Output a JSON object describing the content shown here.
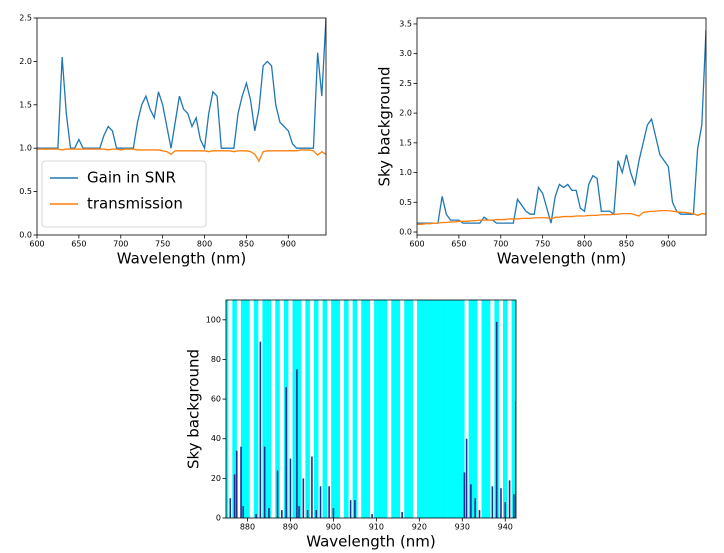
{
  "chart_data": [
    {
      "type": "line",
      "xlabel": "Wavelength (nm)",
      "x": [
        600,
        605,
        610,
        615,
        620,
        625,
        630,
        635,
        640,
        645,
        650,
        655,
        660,
        665,
        670,
        675,
        680,
        685,
        690,
        695,
        700,
        705,
        710,
        715,
        720,
        725,
        730,
        735,
        740,
        745,
        750,
        755,
        760,
        765,
        770,
        775,
        780,
        785,
        790,
        795,
        800,
        805,
        810,
        815,
        820,
        825,
        830,
        835,
        840,
        845,
        850,
        855,
        860,
        865,
        870,
        875,
        880,
        885,
        890,
        895,
        900,
        905,
        910,
        915,
        920,
        925,
        930,
        935,
        940,
        945
      ],
      "series": [
        {
          "name": "Gain in SNR",
          "color": "#1f77b4",
          "values": [
            1.0,
            1.0,
            1.0,
            1.0,
            1.0,
            1.0,
            2.05,
            1.4,
            1.0,
            1.0,
            1.1,
            1.0,
            1.0,
            1.0,
            1.0,
            1.0,
            1.15,
            1.25,
            1.2,
            1.0,
            1.0,
            1.0,
            1.0,
            1.0,
            1.3,
            1.5,
            1.6,
            1.45,
            1.35,
            1.65,
            1.5,
            1.25,
            1.0,
            1.3,
            1.6,
            1.45,
            1.4,
            1.25,
            1.35,
            1.1,
            1.0,
            1.4,
            1.65,
            1.6,
            1.0,
            1.0,
            1.0,
            1.0,
            1.4,
            1.6,
            1.75,
            1.55,
            1.2,
            1.45,
            1.95,
            2.0,
            1.95,
            1.5,
            1.3,
            1.25,
            1.2,
            1.05,
            1.0,
            1.0,
            1.0,
            1.0,
            1.0,
            2.1,
            1.6,
            2.5
          ]
        },
        {
          "name": "transmission",
          "color": "#ff7f0e",
          "values": [
            0.99,
            0.99,
            0.99,
            0.99,
            0.99,
            0.99,
            0.98,
            0.99,
            0.99,
            0.99,
            0.99,
            0.99,
            0.99,
            0.99,
            0.99,
            0.99,
            0.99,
            0.98,
            0.99,
            0.99,
            0.98,
            0.99,
            0.99,
            0.99,
            0.98,
            0.98,
            0.98,
            0.98,
            0.98,
            0.98,
            0.97,
            0.96,
            0.93,
            0.97,
            0.97,
            0.97,
            0.97,
            0.97,
            0.97,
            0.97,
            0.97,
            0.96,
            0.97,
            0.97,
            0.97,
            0.97,
            0.97,
            0.96,
            0.97,
            0.97,
            0.97,
            0.96,
            0.93,
            0.85,
            0.96,
            0.97,
            0.97,
            0.97,
            0.97,
            0.97,
            0.97,
            0.97,
            0.97,
            0.98,
            0.98,
            0.98,
            0.97,
            0.92,
            0.96,
            0.93
          ]
        }
      ],
      "xlim": [
        600,
        945
      ],
      "xticks": [
        600,
        650,
        700,
        750,
        800,
        850,
        900
      ],
      "ylim": [
        0,
        2.5
      ],
      "yticks": [
        {
          "value": 0,
          "label": "0.0"
        },
        {
          "value": 0.5,
          "label": "0.5"
        },
        {
          "value": 1,
          "label": "1.0"
        },
        {
          "value": 1.5,
          "label": "1.5"
        },
        {
          "value": 2,
          "label": "2.0"
        },
        {
          "value": 2.5,
          "label": "2.5"
        }
      ],
      "legend": "lower left"
    },
    {
      "type": "line",
      "xlabel": "Wavelength (nm)",
      "ylabel": "Sky background",
      "x": [
        600,
        605,
        610,
        615,
        620,
        625,
        630,
        635,
        640,
        645,
        650,
        655,
        660,
        665,
        670,
        675,
        680,
        685,
        690,
        695,
        700,
        705,
        710,
        715,
        720,
        725,
        730,
        735,
        740,
        745,
        750,
        755,
        760,
        765,
        770,
        775,
        780,
        785,
        790,
        795,
        800,
        805,
        810,
        815,
        820,
        825,
        830,
        835,
        840,
        845,
        850,
        855,
        860,
        865,
        870,
        875,
        880,
        885,
        890,
        895,
        900,
        905,
        910,
        915,
        920,
        925,
        930,
        935,
        940,
        945
      ],
      "series": [
        {
          "color": "#1f77b4",
          "values": [
            0.15,
            0.15,
            0.15,
            0.15,
            0.15,
            0.15,
            0.6,
            0.3,
            0.2,
            0.2,
            0.2,
            0.15,
            0.15,
            0.15,
            0.15,
            0.15,
            0.25,
            0.2,
            0.2,
            0.15,
            0.15,
            0.15,
            0.15,
            0.15,
            0.55,
            0.45,
            0.35,
            0.3,
            0.3,
            0.75,
            0.65,
            0.4,
            0.15,
            0.6,
            0.8,
            0.75,
            0.8,
            0.7,
            0.7,
            0.4,
            0.35,
            0.8,
            0.95,
            0.9,
            0.35,
            0.35,
            0.35,
            0.3,
            1.2,
            1.0,
            1.3,
            1.0,
            0.8,
            1.2,
            1.5,
            1.8,
            1.9,
            1.6,
            1.3,
            1.2,
            1.1,
            0.5,
            0.35,
            0.3,
            0.3,
            0.3,
            0.3,
            1.4,
            1.8,
            3.4
          ]
        },
        {
          "color": "#ff7f0e",
          "values": [
            0.13,
            0.13,
            0.14,
            0.14,
            0.15,
            0.15,
            0.16,
            0.16,
            0.17,
            0.17,
            0.18,
            0.18,
            0.18,
            0.19,
            0.19,
            0.2,
            0.2,
            0.2,
            0.2,
            0.21,
            0.21,
            0.21,
            0.22,
            0.22,
            0.22,
            0.23,
            0.23,
            0.23,
            0.24,
            0.24,
            0.24,
            0.24,
            0.22,
            0.25,
            0.25,
            0.26,
            0.26,
            0.26,
            0.27,
            0.27,
            0.27,
            0.28,
            0.28,
            0.28,
            0.29,
            0.29,
            0.29,
            0.3,
            0.3,
            0.31,
            0.31,
            0.31,
            0.29,
            0.27,
            0.33,
            0.34,
            0.35,
            0.35,
            0.36,
            0.36,
            0.36,
            0.35,
            0.34,
            0.33,
            0.33,
            0.32,
            0.31,
            0.28,
            0.31,
            0.3
          ]
        }
      ],
      "xlim": [
        600,
        945
      ],
      "xticks": [
        600,
        650,
        700,
        750,
        800,
        850,
        900
      ],
      "ylim": [
        -0.05,
        3.6
      ],
      "yticks": [
        {
          "value": 0,
          "label": "0.0"
        },
        {
          "value": 0.5,
          "label": "0.5"
        },
        {
          "value": 1,
          "label": "1.0"
        },
        {
          "value": 1.5,
          "label": "1.5"
        },
        {
          "value": 2,
          "label": "2.0"
        },
        {
          "value": 2.5,
          "label": "2.5"
        },
        {
          "value": 3,
          "label": "3.0"
        },
        {
          "value": 3.5,
          "label": "3.5"
        }
      ]
    },
    {
      "type": "bar",
      "xlabel": "Wavelength (nm)",
      "ylabel": "Sky background",
      "series": [
        {
          "color": "#00ffff",
          "x": [
            875,
            876,
            877,
            878,
            879,
            880,
            881,
            882,
            883,
            884,
            885,
            886,
            887,
            888,
            889,
            890,
            891,
            892,
            893,
            894,
            895,
            896,
            897,
            898,
            899,
            900,
            901,
            902,
            903,
            904,
            905,
            906,
            907,
            908,
            909,
            910,
            911,
            912,
            913,
            914,
            915,
            916,
            917,
            918,
            919,
            920,
            921,
            922,
            923,
            924,
            925,
            926,
            927,
            928,
            929,
            930,
            931,
            932,
            933,
            934,
            935,
            936,
            937,
            938,
            939,
            940,
            941,
            942
          ],
          "values": [
            110,
            0,
            110,
            0,
            110,
            110,
            0,
            110,
            0,
            110,
            110,
            0,
            110,
            0,
            110,
            0,
            110,
            110,
            0,
            110,
            0,
            110,
            0,
            110,
            0,
            110,
            110,
            0,
            110,
            0,
            110,
            0,
            110,
            110,
            0,
            110,
            110,
            110,
            0,
            110,
            110,
            0,
            110,
            110,
            0,
            110,
            110,
            110,
            110,
            110,
            110,
            110,
            110,
            110,
            110,
            110,
            0,
            110,
            110,
            0,
            110,
            110,
            0,
            110,
            0,
            110,
            0,
            110
          ]
        },
        {
          "color": "#1f2f8f",
          "x": [
            876,
            877,
            877.5,
            878.5,
            879,
            882,
            883,
            884,
            885,
            887,
            888,
            889,
            890,
            891.5,
            892,
            893,
            894,
            895,
            896,
            897,
            899,
            900,
            904,
            905,
            909,
            916,
            930.5,
            931,
            932,
            933,
            934,
            937,
            938,
            939,
            940,
            941,
            942,
            942.5
          ],
          "values": [
            10,
            22,
            34,
            36,
            6,
            2,
            89,
            36,
            5,
            24,
            4,
            66,
            30,
            75,
            6,
            20,
            4,
            31,
            4,
            16,
            16,
            5,
            9,
            9,
            2,
            3,
            23,
            40,
            17,
            10,
            4,
            16,
            99,
            15,
            8,
            19,
            12,
            59
          ]
        }
      ],
      "xlim": [
        875,
        942.5
      ],
      "xticks": [
        880,
        890,
        900,
        910,
        920,
        930,
        940
      ],
      "ylim": [
        0,
        110
      ],
      "yticks": [
        0,
        20,
        40,
        60,
        80,
        100
      ]
    }
  ]
}
